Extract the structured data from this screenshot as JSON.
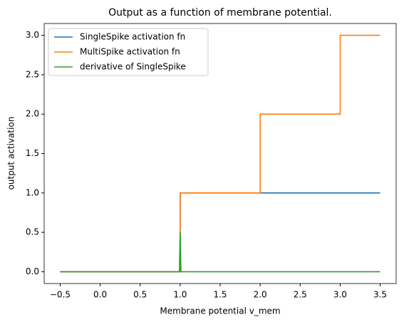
{
  "chart_data": {
    "type": "line",
    "title": "Output as a function of membrane potential.",
    "x_label": "Membrane potential v_mem",
    "y_label": "output activation",
    "series": [
      {
        "name": "SingleSpike activation fn",
        "color": "#1f77b4",
        "x": [
          -0.5,
          1.0,
          1.0,
          3.5
        ],
        "values": [
          0,
          0,
          1,
          1
        ]
      },
      {
        "name": "MultiSpike activation fn",
        "color": "#ff7f0e",
        "x": [
          -0.5,
          1.0,
          1.0,
          2.0,
          2.0,
          3.0,
          3.0,
          3.5
        ],
        "values": [
          0,
          0,
          1,
          1,
          2,
          2,
          3,
          3
        ]
      },
      {
        "name": "derivative of SingleSpike",
        "color": "#2ca02c",
        "x": [
          -0.5,
          0.99,
          1.0,
          1.01,
          3.5
        ],
        "values": [
          0,
          0,
          0.5,
          0,
          0
        ]
      }
    ],
    "xlim": [
      -0.7,
      3.7
    ],
    "ylim": [
      -0.15,
      3.15
    ],
    "xticks": [
      {
        "value": -0.5,
        "label": "−0.5"
      },
      {
        "value": 0,
        "label": "0.0"
      },
      0.5,
      {
        "value": 1,
        "label": "1.0"
      },
      1.5,
      {
        "value": 2,
        "label": "2.0"
      },
      2.5,
      {
        "value": 3,
        "label": "3.0"
      },
      3.5
    ],
    "yticks": [
      {
        "value": 0,
        "label": "0.0"
      },
      0.5,
      {
        "value": 1,
        "label": "1.0"
      },
      1.5,
      {
        "value": 2,
        "label": "2.0"
      },
      2.5,
      {
        "value": 3,
        "label": "3.0"
      }
    ],
    "legend": "upper left",
    "grid": false
  }
}
